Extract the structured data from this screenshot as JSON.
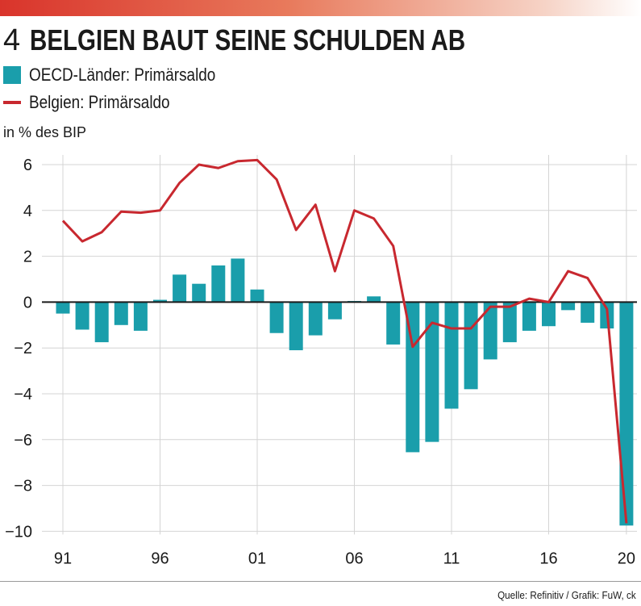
{
  "header": {
    "number": "4",
    "title": "BELGIEN BAUT SEINE SCHULDEN AB"
  },
  "legend": {
    "oecd_label": "OECD-Länder: Primärsaldo",
    "belgium_label": "Belgien: Primärsaldo"
  },
  "unit": "in % des BIP",
  "source": "Quelle: Refinitiv / Grafik: FuW, ck",
  "colors": {
    "bar": "#1a9eab",
    "line": "#c8282f",
    "grid": "#d4d4d4",
    "zero": "#1a1a1a"
  },
  "chart_data": {
    "type": "bar",
    "title": "BELGIEN BAUT SEINE SCHULDEN AB",
    "ylabel": "in % des BIP",
    "xlabel": "",
    "ylim": [
      -10,
      6.5
    ],
    "y_ticks": [
      6,
      4,
      2,
      0,
      -2,
      -4,
      -6,
      -8,
      -10
    ],
    "y_tick_labels": [
      "6",
      "4",
      "2",
      "0",
      "−2",
      "−4",
      "−6",
      "−8",
      "−10"
    ],
    "x": [
      1991,
      1992,
      1993,
      1994,
      1995,
      1996,
      1997,
      1998,
      1999,
      2000,
      2001,
      2002,
      2003,
      2004,
      2005,
      2006,
      2007,
      2008,
      2009,
      2010,
      2011,
      2012,
      2013,
      2014,
      2015,
      2016,
      2017,
      2018,
      2019,
      2020
    ],
    "x_ticks": [
      1991,
      1996,
      2001,
      2006,
      2011,
      2016,
      2020
    ],
    "x_tick_labels": [
      "91",
      "96",
      "01",
      "06",
      "11",
      "16",
      "20"
    ],
    "grid": true,
    "legend_position": "top-left",
    "series": [
      {
        "name": "OECD-Länder: Primärsaldo",
        "type": "bar",
        "values": [
          -0.5,
          -1.2,
          -1.75,
          -1.0,
          -1.25,
          0.1,
          1.2,
          0.8,
          1.6,
          1.9,
          0.55,
          -1.35,
          -2.1,
          -1.45,
          -0.75,
          0.05,
          0.25,
          -1.85,
          -6.55,
          -6.1,
          -4.65,
          -3.8,
          -2.5,
          -1.75,
          -1.25,
          -1.05,
          -0.35,
          -0.9,
          -1.15,
          -9.75
        ]
      },
      {
        "name": "Belgien: Primärsaldo",
        "type": "line",
        "values": [
          3.55,
          2.65,
          3.05,
          3.95,
          3.9,
          4.0,
          5.2,
          6.0,
          5.85,
          6.15,
          6.2,
          5.35,
          3.15,
          4.25,
          1.35,
          4.0,
          3.65,
          2.45,
          -1.95,
          -0.9,
          -1.15,
          -1.15,
          -0.2,
          -0.2,
          0.15,
          0.0,
          1.35,
          1.05,
          -0.3,
          -9.65
        ]
      }
    ]
  }
}
